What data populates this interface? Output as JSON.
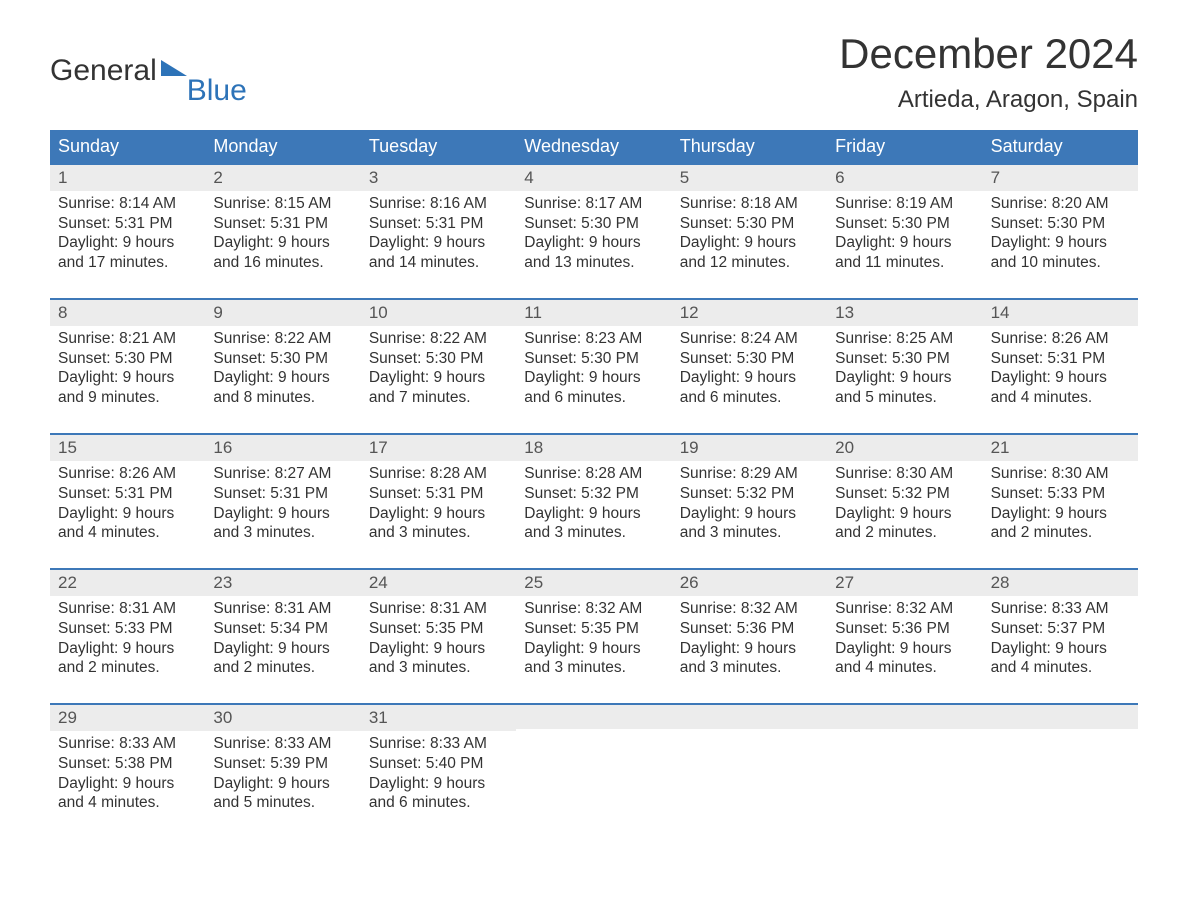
{
  "logo": {
    "part1": "General",
    "part2": "Blue"
  },
  "title": "December 2024",
  "location": "Artieda, Aragon, Spain",
  "colors": {
    "header_bg": "#3d78b8",
    "header_text": "#ffffff",
    "daynum_bg": "#ececec",
    "text": "#333333",
    "logo_accent": "#2d73b8"
  },
  "typography": {
    "title_fontsize": 42,
    "location_fontsize": 24,
    "dow_fontsize": 18,
    "body_fontsize": 15.5
  },
  "layout": {
    "columns": 7,
    "week_rows": 5,
    "aspect_w": 1188,
    "aspect_h": 918
  },
  "days_of_week": [
    "Sunday",
    "Monday",
    "Tuesday",
    "Wednesday",
    "Thursday",
    "Friday",
    "Saturday"
  ],
  "weeks": [
    [
      {
        "n": "1",
        "sunrise": "Sunrise: 8:14 AM",
        "sunset": "Sunset: 5:31 PM",
        "dl1": "Daylight: 9 hours",
        "dl2": "and 17 minutes."
      },
      {
        "n": "2",
        "sunrise": "Sunrise: 8:15 AM",
        "sunset": "Sunset: 5:31 PM",
        "dl1": "Daylight: 9 hours",
        "dl2": "and 16 minutes."
      },
      {
        "n": "3",
        "sunrise": "Sunrise: 8:16 AM",
        "sunset": "Sunset: 5:31 PM",
        "dl1": "Daylight: 9 hours",
        "dl2": "and 14 minutes."
      },
      {
        "n": "4",
        "sunrise": "Sunrise: 8:17 AM",
        "sunset": "Sunset: 5:30 PM",
        "dl1": "Daylight: 9 hours",
        "dl2": "and 13 minutes."
      },
      {
        "n": "5",
        "sunrise": "Sunrise: 8:18 AM",
        "sunset": "Sunset: 5:30 PM",
        "dl1": "Daylight: 9 hours",
        "dl2": "and 12 minutes."
      },
      {
        "n": "6",
        "sunrise": "Sunrise: 8:19 AM",
        "sunset": "Sunset: 5:30 PM",
        "dl1": "Daylight: 9 hours",
        "dl2": "and 11 minutes."
      },
      {
        "n": "7",
        "sunrise": "Sunrise: 8:20 AM",
        "sunset": "Sunset: 5:30 PM",
        "dl1": "Daylight: 9 hours",
        "dl2": "and 10 minutes."
      }
    ],
    [
      {
        "n": "8",
        "sunrise": "Sunrise: 8:21 AM",
        "sunset": "Sunset: 5:30 PM",
        "dl1": "Daylight: 9 hours",
        "dl2": "and 9 minutes."
      },
      {
        "n": "9",
        "sunrise": "Sunrise: 8:22 AM",
        "sunset": "Sunset: 5:30 PM",
        "dl1": "Daylight: 9 hours",
        "dl2": "and 8 minutes."
      },
      {
        "n": "10",
        "sunrise": "Sunrise: 8:22 AM",
        "sunset": "Sunset: 5:30 PM",
        "dl1": "Daylight: 9 hours",
        "dl2": "and 7 minutes."
      },
      {
        "n": "11",
        "sunrise": "Sunrise: 8:23 AM",
        "sunset": "Sunset: 5:30 PM",
        "dl1": "Daylight: 9 hours",
        "dl2": "and 6 minutes."
      },
      {
        "n": "12",
        "sunrise": "Sunrise: 8:24 AM",
        "sunset": "Sunset: 5:30 PM",
        "dl1": "Daylight: 9 hours",
        "dl2": "and 6 minutes."
      },
      {
        "n": "13",
        "sunrise": "Sunrise: 8:25 AM",
        "sunset": "Sunset: 5:30 PM",
        "dl1": "Daylight: 9 hours",
        "dl2": "and 5 minutes."
      },
      {
        "n": "14",
        "sunrise": "Sunrise: 8:26 AM",
        "sunset": "Sunset: 5:31 PM",
        "dl1": "Daylight: 9 hours",
        "dl2": "and 4 minutes."
      }
    ],
    [
      {
        "n": "15",
        "sunrise": "Sunrise: 8:26 AM",
        "sunset": "Sunset: 5:31 PM",
        "dl1": "Daylight: 9 hours",
        "dl2": "and 4 minutes."
      },
      {
        "n": "16",
        "sunrise": "Sunrise: 8:27 AM",
        "sunset": "Sunset: 5:31 PM",
        "dl1": "Daylight: 9 hours",
        "dl2": "and 3 minutes."
      },
      {
        "n": "17",
        "sunrise": "Sunrise: 8:28 AM",
        "sunset": "Sunset: 5:31 PM",
        "dl1": "Daylight: 9 hours",
        "dl2": "and 3 minutes."
      },
      {
        "n": "18",
        "sunrise": "Sunrise: 8:28 AM",
        "sunset": "Sunset: 5:32 PM",
        "dl1": "Daylight: 9 hours",
        "dl2": "and 3 minutes."
      },
      {
        "n": "19",
        "sunrise": "Sunrise: 8:29 AM",
        "sunset": "Sunset: 5:32 PM",
        "dl1": "Daylight: 9 hours",
        "dl2": "and 3 minutes."
      },
      {
        "n": "20",
        "sunrise": "Sunrise: 8:30 AM",
        "sunset": "Sunset: 5:32 PM",
        "dl1": "Daylight: 9 hours",
        "dl2": "and 2 minutes."
      },
      {
        "n": "21",
        "sunrise": "Sunrise: 8:30 AM",
        "sunset": "Sunset: 5:33 PM",
        "dl1": "Daylight: 9 hours",
        "dl2": "and 2 minutes."
      }
    ],
    [
      {
        "n": "22",
        "sunrise": "Sunrise: 8:31 AM",
        "sunset": "Sunset: 5:33 PM",
        "dl1": "Daylight: 9 hours",
        "dl2": "and 2 minutes."
      },
      {
        "n": "23",
        "sunrise": "Sunrise: 8:31 AM",
        "sunset": "Sunset: 5:34 PM",
        "dl1": "Daylight: 9 hours",
        "dl2": "and 2 minutes."
      },
      {
        "n": "24",
        "sunrise": "Sunrise: 8:31 AM",
        "sunset": "Sunset: 5:35 PM",
        "dl1": "Daylight: 9 hours",
        "dl2": "and 3 minutes."
      },
      {
        "n": "25",
        "sunrise": "Sunrise: 8:32 AM",
        "sunset": "Sunset: 5:35 PM",
        "dl1": "Daylight: 9 hours",
        "dl2": "and 3 minutes."
      },
      {
        "n": "26",
        "sunrise": "Sunrise: 8:32 AM",
        "sunset": "Sunset: 5:36 PM",
        "dl1": "Daylight: 9 hours",
        "dl2": "and 3 minutes."
      },
      {
        "n": "27",
        "sunrise": "Sunrise: 8:32 AM",
        "sunset": "Sunset: 5:36 PM",
        "dl1": "Daylight: 9 hours",
        "dl2": "and 4 minutes."
      },
      {
        "n": "28",
        "sunrise": "Sunrise: 8:33 AM",
        "sunset": "Sunset: 5:37 PM",
        "dl1": "Daylight: 9 hours",
        "dl2": "and 4 minutes."
      }
    ],
    [
      {
        "n": "29",
        "sunrise": "Sunrise: 8:33 AM",
        "sunset": "Sunset: 5:38 PM",
        "dl1": "Daylight: 9 hours",
        "dl2": "and 4 minutes."
      },
      {
        "n": "30",
        "sunrise": "Sunrise: 8:33 AM",
        "sunset": "Sunset: 5:39 PM",
        "dl1": "Daylight: 9 hours",
        "dl2": "and 5 minutes."
      },
      {
        "n": "31",
        "sunrise": "Sunrise: 8:33 AM",
        "sunset": "Sunset: 5:40 PM",
        "dl1": "Daylight: 9 hours",
        "dl2": "and 6 minutes."
      },
      null,
      null,
      null,
      null
    ]
  ]
}
